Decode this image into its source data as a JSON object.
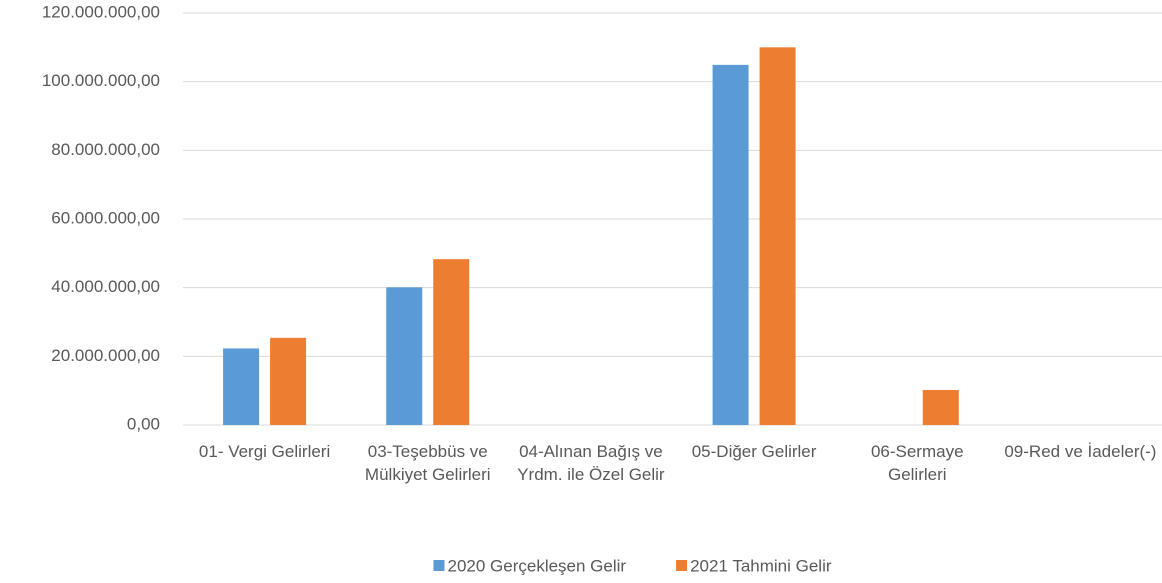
{
  "chart_data": {
    "type": "bar",
    "categories": [
      "01- Vergi Gelirleri",
      "03-Teşebbüs ve Mülkiyet Gelirleri",
      "04-Alınan Bağış ve Yrdm. ile Özel Gelir",
      "05-Diğer Gelirler",
      "06-Sermaye Gelirleri",
      "09-Red ve İadeler(-)"
    ],
    "series": [
      {
        "name": "2020 Gerçekleşen Gelir",
        "color": "#5b9bd5",
        "values": [
          22300000,
          40100000,
          0,
          104900000,
          0,
          0
        ]
      },
      {
        "name": "2021 Tahmini Gelir",
        "color": "#ed7d31",
        "values": [
          25400000,
          48300000,
          0,
          110000000,
          10200000,
          0
        ]
      }
    ],
    "ylim": [
      0,
      120000000
    ],
    "yticks": [
      {
        "value": 0,
        "label": "0,00"
      },
      {
        "value": 20000000,
        "label": "20.000.000,00"
      },
      {
        "value": 40000000,
        "label": "40.000.000,00"
      },
      {
        "value": 60000000,
        "label": "60.000.000,00"
      },
      {
        "value": 80000000,
        "label": "80.000.000,00"
      },
      {
        "value": 100000000,
        "label": "100.000.000,00"
      },
      {
        "value": 120000000,
        "label": "120.000.000,00"
      }
    ],
    "grid": true,
    "legend": "bottom"
  }
}
